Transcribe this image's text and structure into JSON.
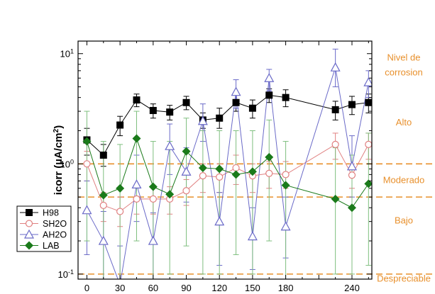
{
  "chart_data": {
    "type": "line",
    "ylabel": "icorr (µA/cm²)",
    "ylabel_prefix": "icorr (",
    "ylabel_unit": "µA/cm",
    "ylabel_exp": "2",
    "ylabel_suffix": ")",
    "y_scale": "log",
    "xlim": [
      -8,
      258
    ],
    "ylim": [
      0.09,
      13
    ],
    "x_ticks": [
      0,
      30,
      60,
      90,
      120,
      150,
      180,
      210,
      240
    ],
    "x_tick_labels": [
      "0",
      "30",
      "60",
      "90",
      "120",
      "150",
      "180",
      "",
      "240"
    ],
    "y_ticks": [
      0.1,
      1,
      10
    ],
    "y_tick_labels": [
      {
        "base": "10",
        "exp": "-1"
      },
      {
        "base": "10",
        "exp": "0"
      },
      {
        "base": "10",
        "exp": "1"
      }
    ],
    "thresholds": [
      0.1,
      0.5,
      1.0
    ],
    "threshold_color": "#e8902c",
    "zone_labels": [
      {
        "lines": [
          "Nivel de",
          "corrosion"
        ],
        "y": 8.0
      },
      {
        "lines": [
          "Alto"
        ],
        "y": 2.4
      },
      {
        "lines": [
          "Moderado"
        ],
        "y": 0.72
      },
      {
        "lines": [
          "Bajo"
        ],
        "y": 0.31
      },
      {
        "lines": [
          "Despreciable"
        ],
        "y": 0.092
      }
    ],
    "legend_position": "lower-left",
    "series": [
      {
        "name": "H98",
        "color": "#000000",
        "marker": "square-filled",
        "points": [
          [
            0,
            1.65
          ],
          [
            15,
            1.2
          ],
          [
            30,
            2.25
          ],
          [
            45,
            3.8
          ],
          [
            60,
            3.05
          ],
          [
            75,
            2.95
          ],
          [
            90,
            3.6
          ],
          [
            105,
            2.5
          ],
          [
            120,
            2.6
          ],
          [
            135,
            3.6
          ],
          [
            150,
            3.2
          ],
          [
            165,
            4.2
          ],
          [
            180,
            4.0
          ],
          [
            225,
            3.1
          ],
          [
            240,
            3.45
          ],
          [
            255,
            3.6
          ]
        ],
        "err_low": [
          1.2,
          0.95,
          1.8,
          3.3,
          2.6,
          2.5,
          3.1,
          2.1,
          2.1,
          3.0,
          2.6,
          3.6,
          3.3,
          2.5,
          2.8,
          2.9
        ],
        "err_high": [
          2.1,
          1.5,
          2.7,
          4.3,
          3.5,
          3.4,
          4.1,
          2.9,
          3.2,
          4.2,
          3.8,
          4.8,
          4.7,
          3.7,
          4.1,
          4.3
        ]
      },
      {
        "name": "SH2O",
        "color": "#e08080",
        "marker": "circle-open",
        "points": [
          [
            0,
            1.0
          ],
          [
            15,
            0.42
          ],
          [
            30,
            0.37
          ],
          [
            45,
            0.48
          ],
          [
            60,
            0.48
          ],
          [
            75,
            0.48
          ],
          [
            90,
            0.57
          ],
          [
            105,
            0.78
          ],
          [
            120,
            0.76
          ],
          [
            135,
            0.92
          ],
          [
            150,
            0.78
          ],
          [
            165,
            0.82
          ],
          [
            180,
            0.8
          ],
          [
            225,
            1.5
          ],
          [
            240,
            0.79
          ],
          [
            255,
            1.5
          ]
        ],
        "err_low": [
          0.7,
          0.3,
          0.27,
          0.35,
          0.35,
          0.35,
          0.42,
          0.55,
          0.55,
          0.65,
          0.55,
          0.6,
          0.6,
          1.1,
          0.6,
          1.1
        ],
        "err_high": [
          1.3,
          0.55,
          0.5,
          0.62,
          0.62,
          0.62,
          0.72,
          1.0,
          1.0,
          1.2,
          1.0,
          1.05,
          1.05,
          1.9,
          1.0,
          1.9
        ]
      },
      {
        "name": "AH2O",
        "color": "#6a6ac8",
        "marker": "triangle-open",
        "points": [
          [
            0,
            0.38
          ],
          [
            15,
            0.2
          ],
          [
            30,
            0.08
          ],
          [
            45,
            0.65
          ],
          [
            60,
            0.2
          ],
          [
            75,
            1.45
          ],
          [
            90,
            0.85
          ],
          [
            105,
            2.45
          ],
          [
            120,
            0.3
          ],
          [
            135,
            4.5
          ],
          [
            150,
            0.22
          ],
          [
            165,
            6.0
          ],
          [
            180,
            0.27
          ],
          [
            225,
            7.5
          ],
          [
            240,
            0.95
          ],
          [
            255,
            5.5
          ]
        ],
        "err_low": [
          0.15,
          0.09,
          0.07,
          0.3,
          0.09,
          0.8,
          0.45,
          1.6,
          0.12,
          3.2,
          0.11,
          4.6,
          0.14,
          5.0,
          0.5,
          4.0
        ],
        "err_high": [
          0.7,
          0.37,
          0.18,
          1.2,
          0.36,
          2.3,
          1.4,
          3.5,
          0.55,
          5.8,
          0.4,
          7.2,
          0.5,
          11.0,
          1.8,
          7.0
        ]
      },
      {
        "name": "LAB",
        "color": "#1a7a1a",
        "err_color": "#7fbf7f",
        "marker": "diamond-filled",
        "points": [
          [
            0,
            1.6
          ],
          [
            15,
            0.52
          ],
          [
            30,
            0.6
          ],
          [
            45,
            1.7
          ],
          [
            60,
            0.62
          ],
          [
            75,
            0.53
          ],
          [
            90,
            1.3
          ],
          [
            105,
            0.92
          ],
          [
            120,
            0.9
          ],
          [
            135,
            0.8
          ],
          [
            150,
            0.85
          ],
          [
            165,
            1.15
          ],
          [
            180,
            0.64
          ],
          [
            225,
            0.48
          ],
          [
            240,
            0.4
          ],
          [
            255,
            0.66
          ]
        ],
        "err_low": [
          0.2,
          0.09,
          0.09,
          0.2,
          0.09,
          0.1,
          0.18,
          0.1,
          0.1,
          0.15,
          0.1,
          0.2,
          0.09,
          0.1,
          0.1,
          0.12
        ],
        "err_high": [
          3.0,
          1.6,
          1.5,
          3.0,
          1.6,
          1.6,
          2.6,
          2.0,
          2.0,
          2.0,
          2.0,
          2.5,
          1.6,
          1.4,
          1.2,
          1.9
        ]
      }
    ]
  }
}
